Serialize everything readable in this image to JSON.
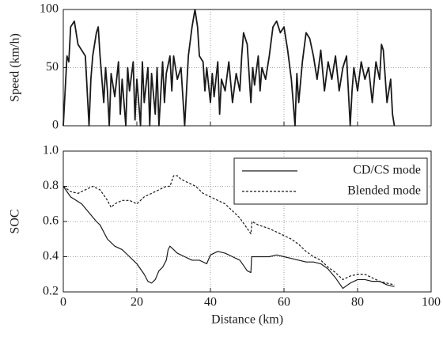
{
  "chart_data": [
    {
      "type": "line",
      "ylabel": "Speed (km/h)",
      "xlim": [
        0,
        100
      ],
      "xticks": [
        0,
        20,
        40,
        60,
        80,
        100
      ],
      "ylim": [
        0,
        100
      ],
      "yticks": [
        0,
        50,
        100
      ],
      "grid": true,
      "color": "#1a1a1a",
      "x": [
        0,
        0.5,
        1,
        1.5,
        2,
        3,
        4,
        5,
        6,
        7,
        7.5,
        8,
        9,
        9.5,
        10,
        11,
        11.5,
        12,
        12.5,
        13,
        14,
        15,
        15.5,
        16,
        17,
        17.5,
        18,
        19,
        19.5,
        20,
        21,
        21.5,
        22,
        23,
        23.5,
        24,
        25,
        25.5,
        26,
        27,
        27.5,
        28,
        29,
        29.5,
        30,
        31,
        32,
        33,
        34,
        35,
        35.8,
        36.5,
        37,
        38,
        38.5,
        39,
        40,
        40.5,
        41,
        42,
        42.5,
        43,
        44,
        45,
        46,
        47,
        48,
        48.5,
        49,
        50,
        51,
        51.5,
        52,
        53,
        53.5,
        54,
        55,
        56,
        57,
        58,
        59,
        60,
        61,
        62,
        63,
        63.5,
        64,
        65,
        66,
        67,
        68,
        69,
        70,
        71,
        72,
        73,
        74,
        75,
        76,
        77,
        78,
        78.5,
        79,
        80,
        81,
        82,
        83,
        84,
        85,
        86,
        86.5,
        87,
        88,
        89,
        89.5,
        90
      ],
      "values": [
        0,
        30,
        60,
        55,
        85,
        90,
        70,
        65,
        60,
        0,
        40,
        60,
        80,
        85,
        60,
        20,
        50,
        30,
        0,
        45,
        25,
        55,
        10,
        40,
        0,
        50,
        30,
        55,
        5,
        40,
        0,
        55,
        20,
        50,
        0,
        45,
        10,
        50,
        0,
        55,
        20,
        45,
        60,
        30,
        60,
        40,
        50,
        0,
        60,
        85,
        100,
        85,
        60,
        55,
        30,
        50,
        20,
        45,
        25,
        55,
        10,
        40,
        30,
        55,
        20,
        45,
        30,
        60,
        80,
        70,
        20,
        50,
        35,
        60,
        30,
        50,
        40,
        60,
        85,
        90,
        80,
        85,
        65,
        40,
        0,
        45,
        20,
        55,
        80,
        75,
        60,
        40,
        65,
        30,
        55,
        40,
        60,
        30,
        50,
        60,
        0,
        30,
        50,
        30,
        55,
        40,
        50,
        20,
        55,
        40,
        70,
        65,
        20,
        40,
        10,
        0
      ]
    },
    {
      "type": "line",
      "ylabel": "SOC",
      "xlabel": "Distance (km)",
      "xlim": [
        0,
        100
      ],
      "xticks": [
        0,
        20,
        40,
        60,
        80,
        100
      ],
      "ylim": [
        0.2,
        1
      ],
      "yticks": [
        0.2,
        0.4,
        0.6,
        0.8,
        {
          "value": 1,
          "label": "1.0"
        }
      ],
      "grid": true,
      "legend": "upper right",
      "series": [
        {
          "name": "CD/CS mode",
          "color": "#1a1a1a",
          "linestyle": "solid",
          "x": [
            0,
            2,
            5,
            7,
            9,
            10,
            12,
            14,
            16,
            18,
            20,
            22,
            23,
            24,
            25,
            26,
            27,
            28,
            28.5,
            29,
            30,
            31,
            33,
            35,
            37,
            39,
            40,
            42,
            44,
            46,
            48,
            50,
            51,
            51.2,
            53,
            56,
            58,
            60,
            62,
            64,
            66,
            68,
            70,
            72,
            74,
            76,
            78,
            80,
            82,
            84,
            86,
            88,
            90
          ],
          "values": [
            0.8,
            0.74,
            0.7,
            0.65,
            0.6,
            0.58,
            0.5,
            0.46,
            0.44,
            0.4,
            0.36,
            0.3,
            0.26,
            0.25,
            0.27,
            0.32,
            0.34,
            0.38,
            0.44,
            0.46,
            0.44,
            0.42,
            0.4,
            0.38,
            0.38,
            0.36,
            0.41,
            0.43,
            0.42,
            0.4,
            0.38,
            0.32,
            0.31,
            0.4,
            0.4,
            0.4,
            0.41,
            0.4,
            0.39,
            0.38,
            0.37,
            0.37,
            0.36,
            0.33,
            0.28,
            0.22,
            0.25,
            0.27,
            0.27,
            0.26,
            0.26,
            0.24,
            0.23
          ]
        },
        {
          "name": "Blended mode",
          "color": "#1a1a1a",
          "linestyle": "dashed",
          "x": [
            0,
            2,
            4,
            6,
            8,
            10,
            12,
            13,
            14,
            16,
            18,
            20,
            22,
            24,
            26,
            28,
            29,
            30,
            31,
            32,
            34,
            36,
            38,
            40,
            42,
            44,
            46,
            48,
            50,
            51,
            51.3,
            53,
            56,
            58,
            60,
            62,
            64,
            66,
            68,
            70,
            72,
            74,
            76,
            78,
            80,
            82,
            84,
            86,
            88,
            90
          ],
          "values": [
            0.8,
            0.77,
            0.76,
            0.78,
            0.8,
            0.78,
            0.72,
            0.68,
            0.7,
            0.72,
            0.72,
            0.7,
            0.74,
            0.76,
            0.78,
            0.8,
            0.8,
            0.86,
            0.86,
            0.84,
            0.82,
            0.8,
            0.76,
            0.74,
            0.72,
            0.7,
            0.66,
            0.62,
            0.56,
            0.53,
            0.6,
            0.58,
            0.56,
            0.54,
            0.52,
            0.5,
            0.47,
            0.43,
            0.4,
            0.38,
            0.34,
            0.31,
            0.27,
            0.29,
            0.3,
            0.3,
            0.28,
            0.26,
            0.25,
            0.24
          ]
        }
      ]
    }
  ]
}
